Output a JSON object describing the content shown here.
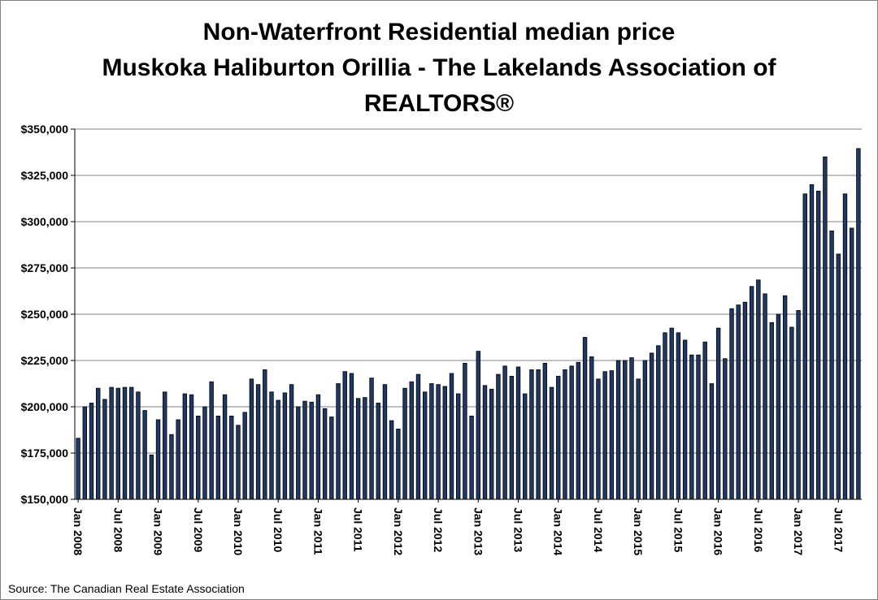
{
  "chart_data": {
    "type": "bar",
    "title_lines": [
      "Non-Waterfront Residential median price",
      "Muskoka Haliburton Orillia - The Lakelands Association of",
      "REALTORS®"
    ],
    "source": "Source: The Canadian Real Estate Association",
    "xlabel": "",
    "ylabel": "",
    "ylim": [
      150000,
      350000
    ],
    "y_ticks": [
      150000,
      175000,
      200000,
      225000,
      250000,
      275000,
      300000,
      325000,
      350000
    ],
    "y_tick_labels": [
      "$150,000",
      "$175,000",
      "$200,000",
      "$225,000",
      "$250,000",
      "$275,000",
      "$300,000",
      "$325,000",
      "$350,000"
    ],
    "x_tick_labels": [
      {
        "index": 0,
        "label": "Jan 2008"
      },
      {
        "index": 6,
        "label": "Jul 2008"
      },
      {
        "index": 12,
        "label": "Jan 2009"
      },
      {
        "index": 18,
        "label": "Jul 2009"
      },
      {
        "index": 24,
        "label": "Jan 2010"
      },
      {
        "index": 30,
        "label": "Jul 2010"
      },
      {
        "index": 36,
        "label": "Jan 2011"
      },
      {
        "index": 42,
        "label": "Jul 2011"
      },
      {
        "index": 48,
        "label": "Jan 2012"
      },
      {
        "index": 54,
        "label": "Jul 2012"
      },
      {
        "index": 60,
        "label": "Jan 2013"
      },
      {
        "index": 66,
        "label": "Jul 2013"
      },
      {
        "index": 72,
        "label": "Jan 2014"
      },
      {
        "index": 78,
        "label": "Jul 2014"
      },
      {
        "index": 84,
        "label": "Jan 2015"
      },
      {
        "index": 90,
        "label": "Jul 2015"
      },
      {
        "index": 96,
        "label": "Jan 2016"
      },
      {
        "index": 102,
        "label": "Jul 2016"
      },
      {
        "index": 108,
        "label": "Jan 2017"
      },
      {
        "index": 114,
        "label": "Jul 2017"
      }
    ],
    "grid": true,
    "legend": "none",
    "bar_color": "#1f3864",
    "bar_edge_color": "#000000",
    "gridline_color": "#808080",
    "series": [
      {
        "values": [
          183000,
          200000,
          202000,
          210000,
          204000,
          210500,
          210000,
          210500,
          210500,
          208000,
          198000,
          174000,
          193000,
          208000,
          185000,
          193000,
          207000,
          206500,
          195000,
          200000,
          213500,
          195000,
          206500,
          195000,
          190000,
          197000,
          215000,
          212000,
          220000,
          208000,
          203500,
          207500,
          212000,
          200000,
          203000,
          202500,
          206500,
          199000,
          194500,
          212500,
          219000,
          218000,
          204500,
          205000,
          215500,
          202000,
          212000,
          192500,
          188000,
          210000,
          213500,
          217500,
          208000,
          212500,
          212000,
          211000,
          218000,
          207000,
          223500,
          195000,
          230000,
          211500,
          209500,
          217500,
          222000,
          216500,
          221500,
          207000,
          220000,
          220000,
          223500,
          210500,
          216500,
          220000,
          222000,
          224000,
          237500,
          227000,
          215000,
          219000,
          219500,
          225000,
          225000,
          226500,
          215000,
          225000,
          229000,
          233000,
          240000,
          242500,
          240000,
          236000,
          228000,
          228000,
          235000,
          212500,
          242500,
          226000,
          253000,
          255000,
          256500,
          265000,
          268500,
          261000,
          245500,
          250000,
          260000,
          243000,
          252000,
          315000,
          320000,
          316500,
          335000,
          295000,
          282500,
          315000,
          296500,
          339500
        ]
      }
    ]
  }
}
